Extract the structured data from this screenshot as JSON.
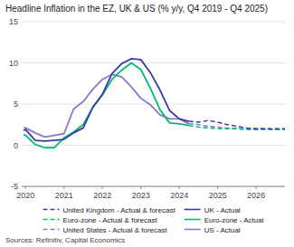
{
  "chart_data": {
    "type": "line",
    "title": "Headline Inflation in the EZ, UK & US (% y/y, Q4 2019 - Q4 2025)",
    "source": "Sources: Refinitiv, Capital Economics",
    "xlim": [
      2019.9,
      2026.75
    ],
    "xticks": [
      2020,
      2021,
      2022,
      2023,
      2024,
      2025,
      2026
    ],
    "ylim": [
      -5,
      15
    ],
    "yticks": [
      -5,
      0,
      5,
      10,
      15
    ],
    "grid": "y",
    "series": [
      {
        "name": "United Kingdom - Actual & forecast",
        "color": "#3a3aaa",
        "line_style": "dashed",
        "x": [
          2024.25,
          2024.5,
          2024.75,
          2025.0,
          2025.25,
          2025.5,
          2025.75,
          2026.0,
          2026.25,
          2026.5,
          2026.75
        ],
        "values": [
          2.9,
          2.8,
          3.0,
          2.8,
          2.5,
          2.3,
          2.1,
          2.0,
          2.0,
          2.0,
          2.0
        ]
      },
      {
        "name": "UK - Actual",
        "color": "#3a3aaa",
        "line_style": "solid",
        "x": [
          2019.95,
          2020.0,
          2020.25,
          2020.5,
          2020.75,
          2021.0,
          2021.25,
          2021.5,
          2021.75,
          2022.0,
          2022.25,
          2022.5,
          2022.75,
          2023.0,
          2023.25,
          2023.5,
          2023.75,
          2024.0,
          2024.25
        ],
        "values": [
          1.8,
          1.9,
          0.6,
          0.5,
          0.6,
          0.7,
          1.5,
          2.1,
          4.6,
          6.2,
          8.7,
          9.9,
          10.5,
          10.4,
          8.8,
          6.7,
          4.2,
          3.2,
          2.9
        ]
      },
      {
        "name": "Euro-zone - Actual & forecast",
        "color": "#00bb77",
        "line_style": "dashed",
        "x": [
          2024.25,
          2024.5,
          2024.75,
          2025.0,
          2025.25,
          2025.5,
          2025.75,
          2026.0,
          2026.25,
          2026.5,
          2026.75
        ],
        "values": [
          2.4,
          2.2,
          2.1,
          2.0,
          2.0,
          2.0,
          1.9,
          1.9,
          1.9,
          1.9,
          1.9
        ]
      },
      {
        "name": "Euro-zone - Actual",
        "color": "#00bb77",
        "line_style": "solid",
        "x": [
          2019.95,
          2020.0,
          2020.25,
          2020.5,
          2020.75,
          2021.0,
          2021.25,
          2021.5,
          2021.75,
          2022.0,
          2022.25,
          2022.5,
          2022.75,
          2023.0,
          2023.25,
          2023.5,
          2023.75,
          2024.0,
          2024.25
        ],
        "values": [
          1.3,
          1.2,
          0.1,
          -0.3,
          -0.3,
          0.9,
          1.6,
          2.5,
          4.6,
          6.1,
          8.0,
          9.1,
          10.0,
          9.2,
          6.9,
          4.3,
          2.7,
          2.6,
          2.4
        ]
      },
      {
        "name": "United States - Actual & forecast",
        "color": "#8877cc",
        "line_style": "dashed",
        "x": [
          2024.25,
          2024.5,
          2024.75,
          2025.0,
          2025.25,
          2025.5,
          2025.75,
          2026.0,
          2026.25,
          2026.5,
          2026.75
        ],
        "values": [
          2.6,
          2.5,
          2.3,
          2.2,
          2.1,
          2.0,
          2.0,
          2.0,
          2.0,
          1.9,
          1.9
        ]
      },
      {
        "name": "US - Actual",
        "color": "#8877cc",
        "line_style": "solid",
        "x": [
          2019.95,
          2020.0,
          2020.25,
          2020.5,
          2020.75,
          2021.0,
          2021.25,
          2021.5,
          2021.75,
          2022.0,
          2022.25,
          2022.5,
          2022.75,
          2023.0,
          2023.25,
          2023.5,
          2023.75,
          2024.0,
          2024.25
        ],
        "values": [
          2.1,
          2.1,
          1.5,
          1.0,
          1.2,
          1.4,
          4.4,
          5.3,
          6.8,
          8.0,
          8.6,
          8.3,
          7.1,
          5.7,
          4.9,
          3.7,
          3.2,
          3.2,
          2.6
        ]
      }
    ]
  }
}
